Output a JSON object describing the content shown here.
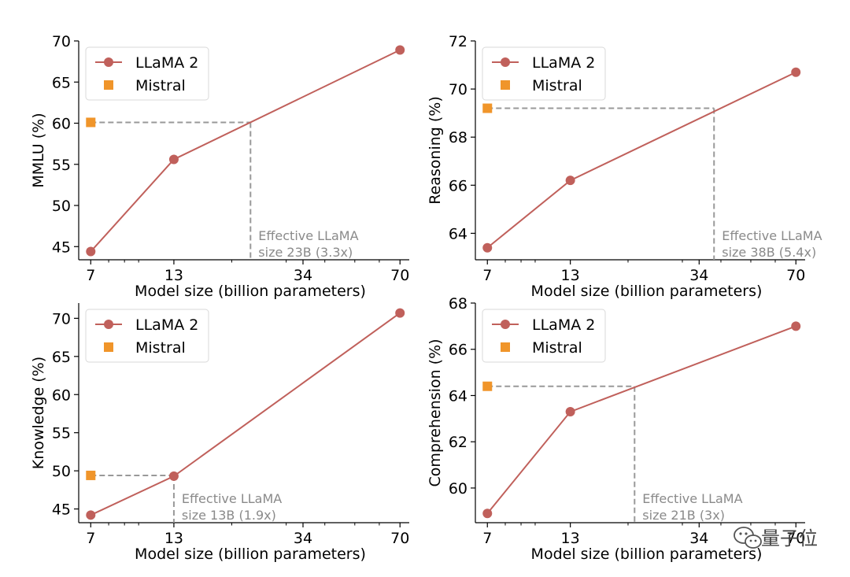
{
  "watermark": {
    "text": "量子位",
    "icon": "wechat-icon"
  },
  "colors": {
    "llama": "#c0605b",
    "mistral": "#f0952a",
    "reference": "#999999",
    "annotation": "#8a8a8a"
  },
  "chart_data": [
    {
      "type": "line",
      "xscale": "log",
      "xlabel": "Model size (billion parameters)",
      "ylabel": "MMLU (%)",
      "xticks": [
        7,
        13,
        34,
        70
      ],
      "yticks": [
        45,
        50,
        55,
        60,
        65,
        70
      ],
      "xlim": [
        6.4,
        75
      ],
      "ylim": [
        43.4,
        70
      ],
      "legend": {
        "placement": "top-left",
        "entries": [
          "LLaMA 2",
          "Mistral"
        ]
      },
      "series": [
        {
          "name": "LLaMA 2",
          "marker": "circle",
          "x": [
            7,
            13,
            70
          ],
          "y": [
            44.4,
            55.6,
            68.9
          ]
        },
        {
          "name": "Mistral",
          "marker": "square",
          "x": [
            7
          ],
          "y": [
            60.1
          ]
        }
      ],
      "reference": {
        "x": 23,
        "y": 60.1
      },
      "annotation": [
        "Effective LLaMA",
        "size 23B (3.3x)"
      ]
    },
    {
      "type": "line",
      "xscale": "log",
      "xlabel": "Model size (billion parameters)",
      "ylabel": "Reasoning (%)",
      "xticks": [
        7,
        13,
        34,
        70
      ],
      "yticks": [
        64,
        66,
        68,
        70,
        72
      ],
      "xlim": [
        6.4,
        75
      ],
      "ylim": [
        62.9,
        72
      ],
      "legend": {
        "placement": "top-left",
        "entries": [
          "LLaMA 2",
          "Mistral"
        ]
      },
      "series": [
        {
          "name": "LLaMA 2",
          "marker": "circle",
          "x": [
            7,
            13,
            70
          ],
          "y": [
            63.4,
            66.2,
            70.7
          ]
        },
        {
          "name": "Mistral",
          "marker": "square",
          "x": [
            7
          ],
          "y": [
            69.2
          ]
        }
      ],
      "reference": {
        "x": 38,
        "y": 69.2
      },
      "annotation": [
        "Effective LLaMA",
        "size 38B (5.4x)"
      ]
    },
    {
      "type": "line",
      "xscale": "log",
      "xlabel": "Model size (billion parameters)",
      "ylabel": "Knowledge (%)",
      "xticks": [
        7,
        13,
        34,
        70
      ],
      "yticks": [
        45,
        50,
        55,
        60,
        65,
        70
      ],
      "xlim": [
        6.4,
        75
      ],
      "ylim": [
        43.2,
        72
      ],
      "legend": {
        "placement": "top-left",
        "entries": [
          "LLaMA 2",
          "Mistral"
        ]
      },
      "series": [
        {
          "name": "LLaMA 2",
          "marker": "circle",
          "x": [
            7,
            13,
            70
          ],
          "y": [
            44.2,
            49.3,
            70.7
          ]
        },
        {
          "name": "Mistral",
          "marker": "square",
          "x": [
            7
          ],
          "y": [
            49.4
          ]
        }
      ],
      "reference": {
        "x": 13,
        "y": 49.4
      },
      "annotation": [
        "Effective LLaMA",
        "size 13B (1.9x)"
      ]
    },
    {
      "type": "line",
      "xscale": "log",
      "xlabel": "Model size (billion parameters)",
      "ylabel": "Comprehension (%)",
      "xticks": [
        7,
        13,
        34,
        70
      ],
      "yticks": [
        60,
        62,
        64,
        66,
        68
      ],
      "xlim": [
        6.4,
        75
      ],
      "ylim": [
        58.5,
        68
      ],
      "legend": {
        "placement": "top-left",
        "entries": [
          "LLaMA 2",
          "Mistral"
        ]
      },
      "series": [
        {
          "name": "LLaMA 2",
          "marker": "circle",
          "x": [
            7,
            13,
            70
          ],
          "y": [
            58.9,
            63.3,
            67.0
          ]
        },
        {
          "name": "Mistral",
          "marker": "square",
          "x": [
            7
          ],
          "y": [
            64.4
          ]
        }
      ],
      "reference": {
        "x": 21,
        "y": 64.4
      },
      "annotation": [
        "Effective LLaMA",
        "size 21B (3x)"
      ]
    }
  ]
}
